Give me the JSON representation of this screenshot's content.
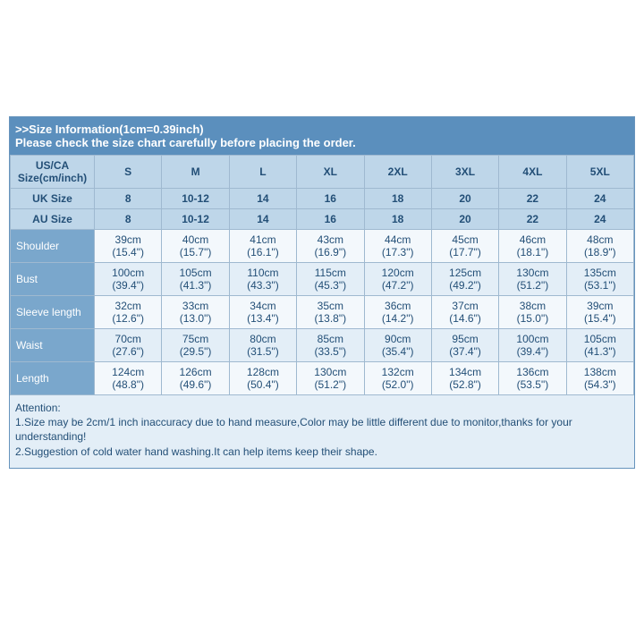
{
  "colors": {
    "header_bg": "#5b8fbd",
    "header_text": "#ffffff",
    "sizebar_bg": "#bed6e9",
    "sizebar_text": "#234f77",
    "rowlabel_bg": "#7aa7cc",
    "rowlabel_text": "#ffffff",
    "cell_bg_a": "#f3f8fc",
    "cell_bg_b": "#e3eef7",
    "cell_text": "#234f77",
    "attention_bg": "#e3eef7",
    "attention_text": "#234f77",
    "border": "#9fb9d0",
    "font_size_header": "13px",
    "font_size_cell": "12px",
    "font_size_att": "12px"
  },
  "header": {
    "line1": ">>Size Information(1cm=0.39inch)",
    "line2": "Please check the size chart carefully before placing the order."
  },
  "size_rows": [
    {
      "label": "US/CA Size(cm/inch)",
      "values": [
        "S",
        "M",
        "L",
        "XL",
        "2XL",
        "3XL",
        "4XL",
        "5XL"
      ]
    },
    {
      "label": "UK Size",
      "values": [
        "8",
        "10-12",
        "14",
        "16",
        "18",
        "20",
        "22",
        "24"
      ]
    },
    {
      "label": "AU Size",
      "values": [
        "8",
        "10-12",
        "14",
        "16",
        "18",
        "20",
        "22",
        "24"
      ]
    }
  ],
  "measure_rows": [
    {
      "label": "Shoulder",
      "values": [
        {
          "cm": "39cm",
          "in": "(15.4\")"
        },
        {
          "cm": "40cm",
          "in": "(15.7\")"
        },
        {
          "cm": "41cm",
          "in": "(16.1\")"
        },
        {
          "cm": "43cm",
          "in": "(16.9\")"
        },
        {
          "cm": "44cm",
          "in": "(17.3\")"
        },
        {
          "cm": "45cm",
          "in": "(17.7\")"
        },
        {
          "cm": "46cm",
          "in": "(18.1\")"
        },
        {
          "cm": "48cm",
          "in": "(18.9\")"
        }
      ]
    },
    {
      "label": "Bust",
      "values": [
        {
          "cm": "100cm",
          "in": "(39.4\")"
        },
        {
          "cm": "105cm",
          "in": "(41.3\")"
        },
        {
          "cm": "110cm",
          "in": "(43.3\")"
        },
        {
          "cm": "115cm",
          "in": "(45.3\")"
        },
        {
          "cm": "120cm",
          "in": "(47.2\")"
        },
        {
          "cm": "125cm",
          "in": "(49.2\")"
        },
        {
          "cm": "130cm",
          "in": "(51.2\")"
        },
        {
          "cm": "135cm",
          "in": "(53.1\")"
        }
      ]
    },
    {
      "label": "Sleeve length",
      "values": [
        {
          "cm": "32cm",
          "in": "(12.6\")"
        },
        {
          "cm": "33cm",
          "in": "(13.0\")"
        },
        {
          "cm": "34cm",
          "in": "(13.4\")"
        },
        {
          "cm": "35cm",
          "in": "(13.8\")"
        },
        {
          "cm": "36cm",
          "in": "(14.2\")"
        },
        {
          "cm": "37cm",
          "in": "(14.6\")"
        },
        {
          "cm": "38cm",
          "in": "(15.0\")"
        },
        {
          "cm": "39cm",
          "in": "(15.4\")"
        }
      ]
    },
    {
      "label": "Waist",
      "values": [
        {
          "cm": "70cm",
          "in": "(27.6\")"
        },
        {
          "cm": "75cm",
          "in": "(29.5\")"
        },
        {
          "cm": "80cm",
          "in": "(31.5\")"
        },
        {
          "cm": "85cm",
          "in": "(33.5\")"
        },
        {
          "cm": "90cm",
          "in": "(35.4\")"
        },
        {
          "cm": "95cm",
          "in": "(37.4\")"
        },
        {
          "cm": "100cm",
          "in": "(39.4\")"
        },
        {
          "cm": "105cm",
          "in": "(41.3\")"
        }
      ]
    },
    {
      "label": "Length",
      "values": [
        {
          "cm": "124cm",
          "in": "(48.8\")"
        },
        {
          "cm": "126cm",
          "in": "(49.6\")"
        },
        {
          "cm": "128cm",
          "in": "(50.4\")"
        },
        {
          "cm": "130cm",
          "in": "(51.2\")"
        },
        {
          "cm": "132cm",
          "in": "(52.0\")"
        },
        {
          "cm": "134cm",
          "in": "(52.8\")"
        },
        {
          "cm": "136cm",
          "in": "(53.5\")"
        },
        {
          "cm": "138cm",
          "in": "(54.3\")"
        }
      ]
    }
  ],
  "attention": {
    "title": "Attention:",
    "lines": [
      "1.Size may be 2cm/1 inch inaccuracy due to hand measure,Color may be little different due to monitor,thanks for your understanding!",
      "2.Suggestion of cold water hand washing.It can help items keep their shape."
    ]
  }
}
